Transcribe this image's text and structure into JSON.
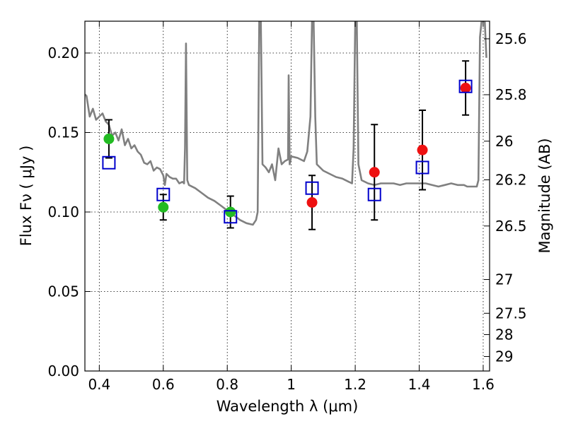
{
  "chart_data": {
    "type": "scatter",
    "title": "",
    "xlabel": "Wavelength  λ (μm)",
    "ylabel": "Flux  Fν  ( μJy )",
    "y2label": "Magnitude (AB)",
    "xlim": [
      0.355,
      1.62
    ],
    "ylim": [
      0.0,
      0.22
    ],
    "grid": true,
    "xticks": [
      0.4,
      0.6,
      0.8,
      1.0,
      1.2,
      1.4,
      1.6
    ],
    "xtick_labels": [
      "0.4",
      "0.6",
      "0.8",
      "1",
      "1.2",
      "1.4",
      "1.6"
    ],
    "yticks": [
      0.0,
      0.05,
      0.1,
      0.15,
      0.2
    ],
    "ytick_labels": [
      "0.00",
      "0.05",
      "0.10",
      "0.15",
      "0.20"
    ],
    "y2ticks": [
      25.6,
      25.8,
      26.0,
      26.2,
      26.5,
      27.0,
      27.5,
      28.0,
      29.0
    ],
    "y2tick_labels": [
      "25.6",
      "25.8",
      "26",
      "26.2",
      "26.5",
      "27",
      "27.5",
      "28",
      "29"
    ],
    "colors": {
      "spectrum": "#808080",
      "green_points": "#22bb22",
      "red_points": "#ee1111",
      "model_squares": "#0000cc",
      "errorbars": "#000000"
    },
    "series": [
      {
        "marker": "line",
        "x": [
          0.355,
          0.36,
          0.37,
          0.38,
          0.39,
          0.4,
          0.41,
          0.42,
          0.43,
          0.44,
          0.45,
          0.46,
          0.47,
          0.48,
          0.49,
          0.5,
          0.51,
          0.52,
          0.53,
          0.54,
          0.55,
          0.56,
          0.57,
          0.58,
          0.59,
          0.6,
          0.605,
          0.61,
          0.62,
          0.63,
          0.64,
          0.65,
          0.66,
          0.665,
          0.668,
          0.671,
          0.675,
          0.68,
          0.7,
          0.72,
          0.74,
          0.76,
          0.78,
          0.8,
          0.82,
          0.84,
          0.86,
          0.88,
          0.89,
          0.895,
          0.9,
          0.905,
          0.91,
          0.92,
          0.93,
          0.94,
          0.95,
          0.96,
          0.97,
          0.98,
          0.99,
          0.992,
          0.995,
          1.0,
          1.02,
          1.04,
          1.05,
          1.06,
          1.065,
          1.07,
          1.075,
          1.08,
          1.1,
          1.12,
          1.14,
          1.16,
          1.18,
          1.19,
          1.195,
          1.2,
          1.205,
          1.21,
          1.22,
          1.24,
          1.26,
          1.28,
          1.3,
          1.32,
          1.34,
          1.36,
          1.38,
          1.4,
          1.42,
          1.44,
          1.46,
          1.48,
          1.5,
          1.52,
          1.53,
          1.54,
          1.55,
          1.56,
          1.58,
          1.585,
          1.59,
          1.595,
          1.6,
          1.605,
          1.61
        ],
        "y": [
          0.174,
          0.173,
          0.16,
          0.165,
          0.158,
          0.16,
          0.162,
          0.157,
          0.155,
          0.148,
          0.15,
          0.145,
          0.152,
          0.142,
          0.146,
          0.14,
          0.142,
          0.138,
          0.136,
          0.131,
          0.13,
          0.132,
          0.126,
          0.128,
          0.127,
          0.123,
          0.117,
          0.124,
          0.122,
          0.121,
          0.121,
          0.118,
          0.119,
          0.118,
          0.14,
          0.206,
          0.12,
          0.117,
          0.115,
          0.112,
          0.109,
          0.107,
          0.104,
          0.101,
          0.098,
          0.095,
          0.093,
          0.092,
          0.095,
          0.1,
          0.22,
          0.22,
          0.13,
          0.128,
          0.125,
          0.13,
          0.12,
          0.14,
          0.13,
          0.132,
          0.133,
          0.186,
          0.13,
          0.135,
          0.134,
          0.132,
          0.138,
          0.16,
          0.22,
          0.22,
          0.16,
          0.13,
          0.126,
          0.124,
          0.122,
          0.121,
          0.119,
          0.118,
          0.14,
          0.22,
          0.22,
          0.13,
          0.12,
          0.118,
          0.117,
          0.118,
          0.118,
          0.118,
          0.117,
          0.118,
          0.118,
          0.118,
          0.118,
          0.117,
          0.116,
          0.117,
          0.118,
          0.117,
          0.117,
          0.117,
          0.116,
          0.116,
          0.116,
          0.12,
          0.21,
          0.22,
          0.22,
          0.22,
          0.197
        ]
      },
      {
        "marker": "circle",
        "color": "#22bb22",
        "x": [
          0.43,
          0.6,
          0.81
        ],
        "y": [
          0.146,
          0.103,
          0.1
        ],
        "yerr": [
          0.012,
          0.008,
          0.01
        ]
      },
      {
        "marker": "circle",
        "color": "#ee1111",
        "x": [
          1.065,
          1.26,
          1.41,
          1.545
        ],
        "y": [
          0.106,
          0.125,
          0.139,
          0.178
        ],
        "yerr": [
          0.017,
          0.03,
          0.025,
          0.017
        ]
      },
      {
        "marker": "square",
        "color": "#0000cc",
        "x": [
          0.43,
          0.6,
          0.81,
          1.065,
          1.26,
          1.41,
          1.545
        ],
        "y": [
          0.131,
          0.111,
          0.097,
          0.115,
          0.111,
          0.128,
          0.179
        ]
      }
    ]
  }
}
